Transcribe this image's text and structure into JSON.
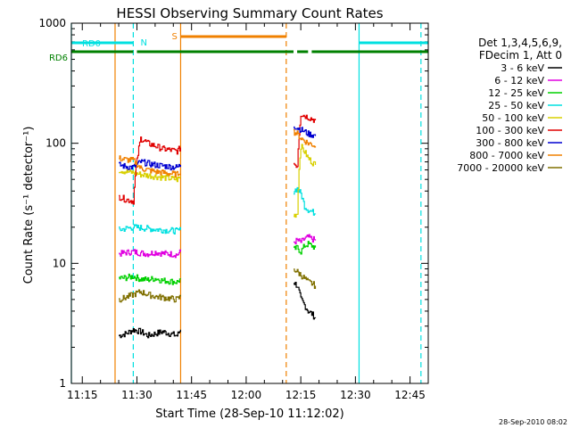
{
  "chart_data": {
    "type": "line",
    "title": "HESSI Observing Summary Count Rates",
    "xlabel": "Start Time (28-Sep-10 11:12:02)",
    "ylabel": "Count Rate (s⁻¹ detector⁻¹)",
    "yscale": "log",
    "ylim": [
      1,
      1000
    ],
    "xlim": [
      "11:12",
      "12:50"
    ],
    "xticks": [
      "11:15",
      "11:30",
      "11:45",
      "12:00",
      "12:15",
      "12:30",
      "12:45"
    ],
    "yticks": [
      "1",
      "10",
      "100",
      "1000"
    ],
    "legend_position": "right",
    "legend_header": [
      "Det 1,3,4,5,6,9,",
      "FDecim 1, Att 0"
    ],
    "footer": "28-Sep-2010 08:02",
    "series": [
      {
        "name": "3 - 6 keV",
        "color": "#000000",
        "segments": [
          {
            "x": [
              "11:25",
              "11:27",
              "11:29",
              "11:31",
              "11:33",
              "11:35",
              "11:37",
              "11:39",
              "11:41",
              "11:42"
            ],
            "y": [
              2.5,
              2.6,
              2.8,
              2.7,
              2.5,
              2.6,
              2.7,
              2.6,
              2.5,
              2.8
            ]
          },
          {
            "x": [
              "12:13",
              "12:14",
              "12:15",
              "12:16",
              "12:17",
              "12:18",
              "12:19"
            ],
            "y": [
              7,
              6.5,
              5,
              4.5,
              4,
              3.8,
              3.5
            ]
          }
        ]
      },
      {
        "name": "6 - 12 keV",
        "color": "#e000e0",
        "segments": [
          {
            "x": [
              "11:25",
              "11:27",
              "11:29",
              "11:31",
              "11:33",
              "11:35",
              "11:37",
              "11:39",
              "11:41",
              "11:42"
            ],
            "y": [
              12,
              12.3,
              12.5,
              12.2,
              12,
              12.4,
              12.1,
              12,
              11.8,
              12.5
            ]
          },
          {
            "x": [
              "12:13",
              "12:14",
              "12:15",
              "12:16",
              "12:17",
              "12:18",
              "12:19"
            ],
            "y": [
              15,
              15.5,
              15,
              16,
              16.5,
              16,
              15.5
            ]
          }
        ]
      },
      {
        "name": "12 - 25 keV",
        "color": "#00d000",
        "segments": [
          {
            "x": [
              "11:25",
              "11:27",
              "11:29",
              "11:31",
              "11:33",
              "11:35",
              "11:37",
              "11:39",
              "11:41",
              "11:42"
            ],
            "y": [
              7.5,
              7.6,
              7.8,
              7.4,
              7.3,
              7.5,
              7.2,
              7.1,
              7,
              7.4
            ]
          },
          {
            "x": [
              "12:13",
              "12:14",
              "12:15",
              "12:16",
              "12:17",
              "12:18",
              "12:19"
            ],
            "y": [
              13,
              13.5,
              12.5,
              14,
              14.5,
              14,
              13.5
            ]
          }
        ]
      },
      {
        "name": "25 - 50 keV",
        "color": "#00e0e0",
        "segments": [
          {
            "x": [
              "11:25",
              "11:27",
              "11:29",
              "11:31",
              "11:33",
              "11:35",
              "11:37",
              "11:39",
              "11:41",
              "11:42"
            ],
            "y": [
              19,
              19.5,
              20,
              19.8,
              19.5,
              19.2,
              19,
              18.8,
              18.6,
              19
            ]
          },
          {
            "x": [
              "12:13",
              "12:14",
              "12:15",
              "12:16",
              "12:17",
              "12:18",
              "12:19"
            ],
            "y": [
              40,
              42,
              38,
              30,
              28,
              27,
              26
            ]
          }
        ]
      },
      {
        "name": "50 - 100 keV",
        "color": "#d8d000",
        "segments": [
          {
            "x": [
              "11:25",
              "11:27",
              "11:29",
              "11:31",
              "11:33",
              "11:35",
              "11:37",
              "11:39",
              "11:41",
              "11:42"
            ],
            "y": [
              60,
              58,
              57,
              55,
              54,
              53,
              52,
              51,
              50,
              52
            ]
          },
          {
            "x": [
              "12:13",
              "12:14",
              "12:15",
              "12:16",
              "12:17",
              "12:18",
              "12:19"
            ],
            "y": [
              25,
              26,
              95,
              85,
              75,
              70,
              66
            ]
          }
        ]
      },
      {
        "name": "100 - 300 keV",
        "color": "#e00000",
        "segments": [
          {
            "x": [
              "11:25",
              "11:27",
              "11:29",
              "11:31",
              "11:33",
              "11:35",
              "11:37",
              "11:39",
              "11:41",
              "11:42"
            ],
            "y": [
              36,
              34,
              33,
              110,
              100,
              95,
              90,
              88,
              86,
              92
            ]
          },
          {
            "x": [
              "12:13",
              "12:14",
              "12:15",
              "12:16",
              "12:17",
              "12:18",
              "12:19"
            ],
            "y": [
              68,
              65,
              175,
              170,
              165,
              160,
              155
            ]
          }
        ]
      },
      {
        "name": "300 - 800 keV",
        "color": "#0000d0",
        "segments": [
          {
            "x": [
              "11:25",
              "11:27",
              "11:29",
              "11:31",
              "11:33",
              "11:35",
              "11:37",
              "11:39",
              "11:41",
              "11:42"
            ],
            "y": [
              66,
              64,
              63,
              70,
              68,
              66,
              65,
              64,
              63,
              66
            ]
          },
          {
            "x": [
              "12:13",
              "12:14",
              "12:15",
              "12:16",
              "12:17",
              "12:18",
              "12:19"
            ],
            "y": [
              140,
              135,
              130,
              125,
              120,
              118,
              115
            ]
          }
        ]
      },
      {
        "name": "800 - 7000 keV",
        "color": "#f08000",
        "segments": [
          {
            "x": [
              "11:25",
              "11:27",
              "11:29",
              "11:31",
              "11:33",
              "11:35",
              "11:37",
              "11:39",
              "11:41",
              "11:42"
            ],
            "y": [
              75,
              73,
              72,
              62,
              60,
              58,
              57,
              56,
              55,
              60
            ]
          },
          {
            "x": [
              "12:13",
              "12:14",
              "12:15",
              "12:16",
              "12:17",
              "12:18",
              "12:19"
            ],
            "y": [
              125,
              120,
              110,
              105,
              100,
              98,
              95
            ]
          }
        ]
      },
      {
        "name": "7000 - 20000 keV",
        "color": "#807000",
        "segments": [
          {
            "x": [
              "11:25",
              "11:27",
              "11:29",
              "11:31",
              "11:33",
              "11:35",
              "11:37",
              "11:39",
              "11:41",
              "11:42"
            ],
            "y": [
              5,
              5.2,
              5.5,
              5.8,
              5.5,
              5.3,
              5.2,
              5.1,
              5,
              5.3
            ]
          },
          {
            "x": [
              "12:13",
              "12:14",
              "12:15",
              "12:16",
              "12:17",
              "12:18",
              "12:19"
            ],
            "y": [
              9,
              8.5,
              8,
              7.5,
              7,
              6.8,
              6.5
            ]
          }
        ]
      }
    ],
    "flags": [
      {
        "label": "RD0",
        "color": "#00e0e0",
        "segments": [
          [
            "11:12",
            "11:29"
          ],
          [
            "12:31",
            "12:50"
          ]
        ]
      },
      {
        "label": "RD6",
        "color": "#008000",
        "segments": [
          [
            "11:12",
            "11:29"
          ],
          [
            "11:30",
            "12:13"
          ],
          [
            "12:14",
            "12:17"
          ],
          [
            "12:18",
            "12:50"
          ]
        ]
      },
      {
        "label": "N",
        "color": "#00e0e0",
        "segments": [
          [
            "11:30",
            "11:30"
          ]
        ]
      },
      {
        "label": "S",
        "color": "#f08000",
        "segments": [
          [
            "11:42",
            "12:11"
          ]
        ]
      }
    ],
    "vlines": [
      {
        "x": "11:12",
        "color": "#00e0e0",
        "style": "solid"
      },
      {
        "x": "11:24",
        "color": "#f08000",
        "style": "solid"
      },
      {
        "x": "11:29",
        "color": "#00e0e0",
        "style": "dash"
      },
      {
        "x": "11:42",
        "color": "#f08000",
        "style": "solid"
      },
      {
        "x": "12:11",
        "color": "#f08000",
        "style": "dash"
      },
      {
        "x": "12:31",
        "color": "#00e0e0",
        "style": "solid"
      },
      {
        "x": "12:48",
        "color": "#00e0e0",
        "style": "dash"
      }
    ]
  }
}
